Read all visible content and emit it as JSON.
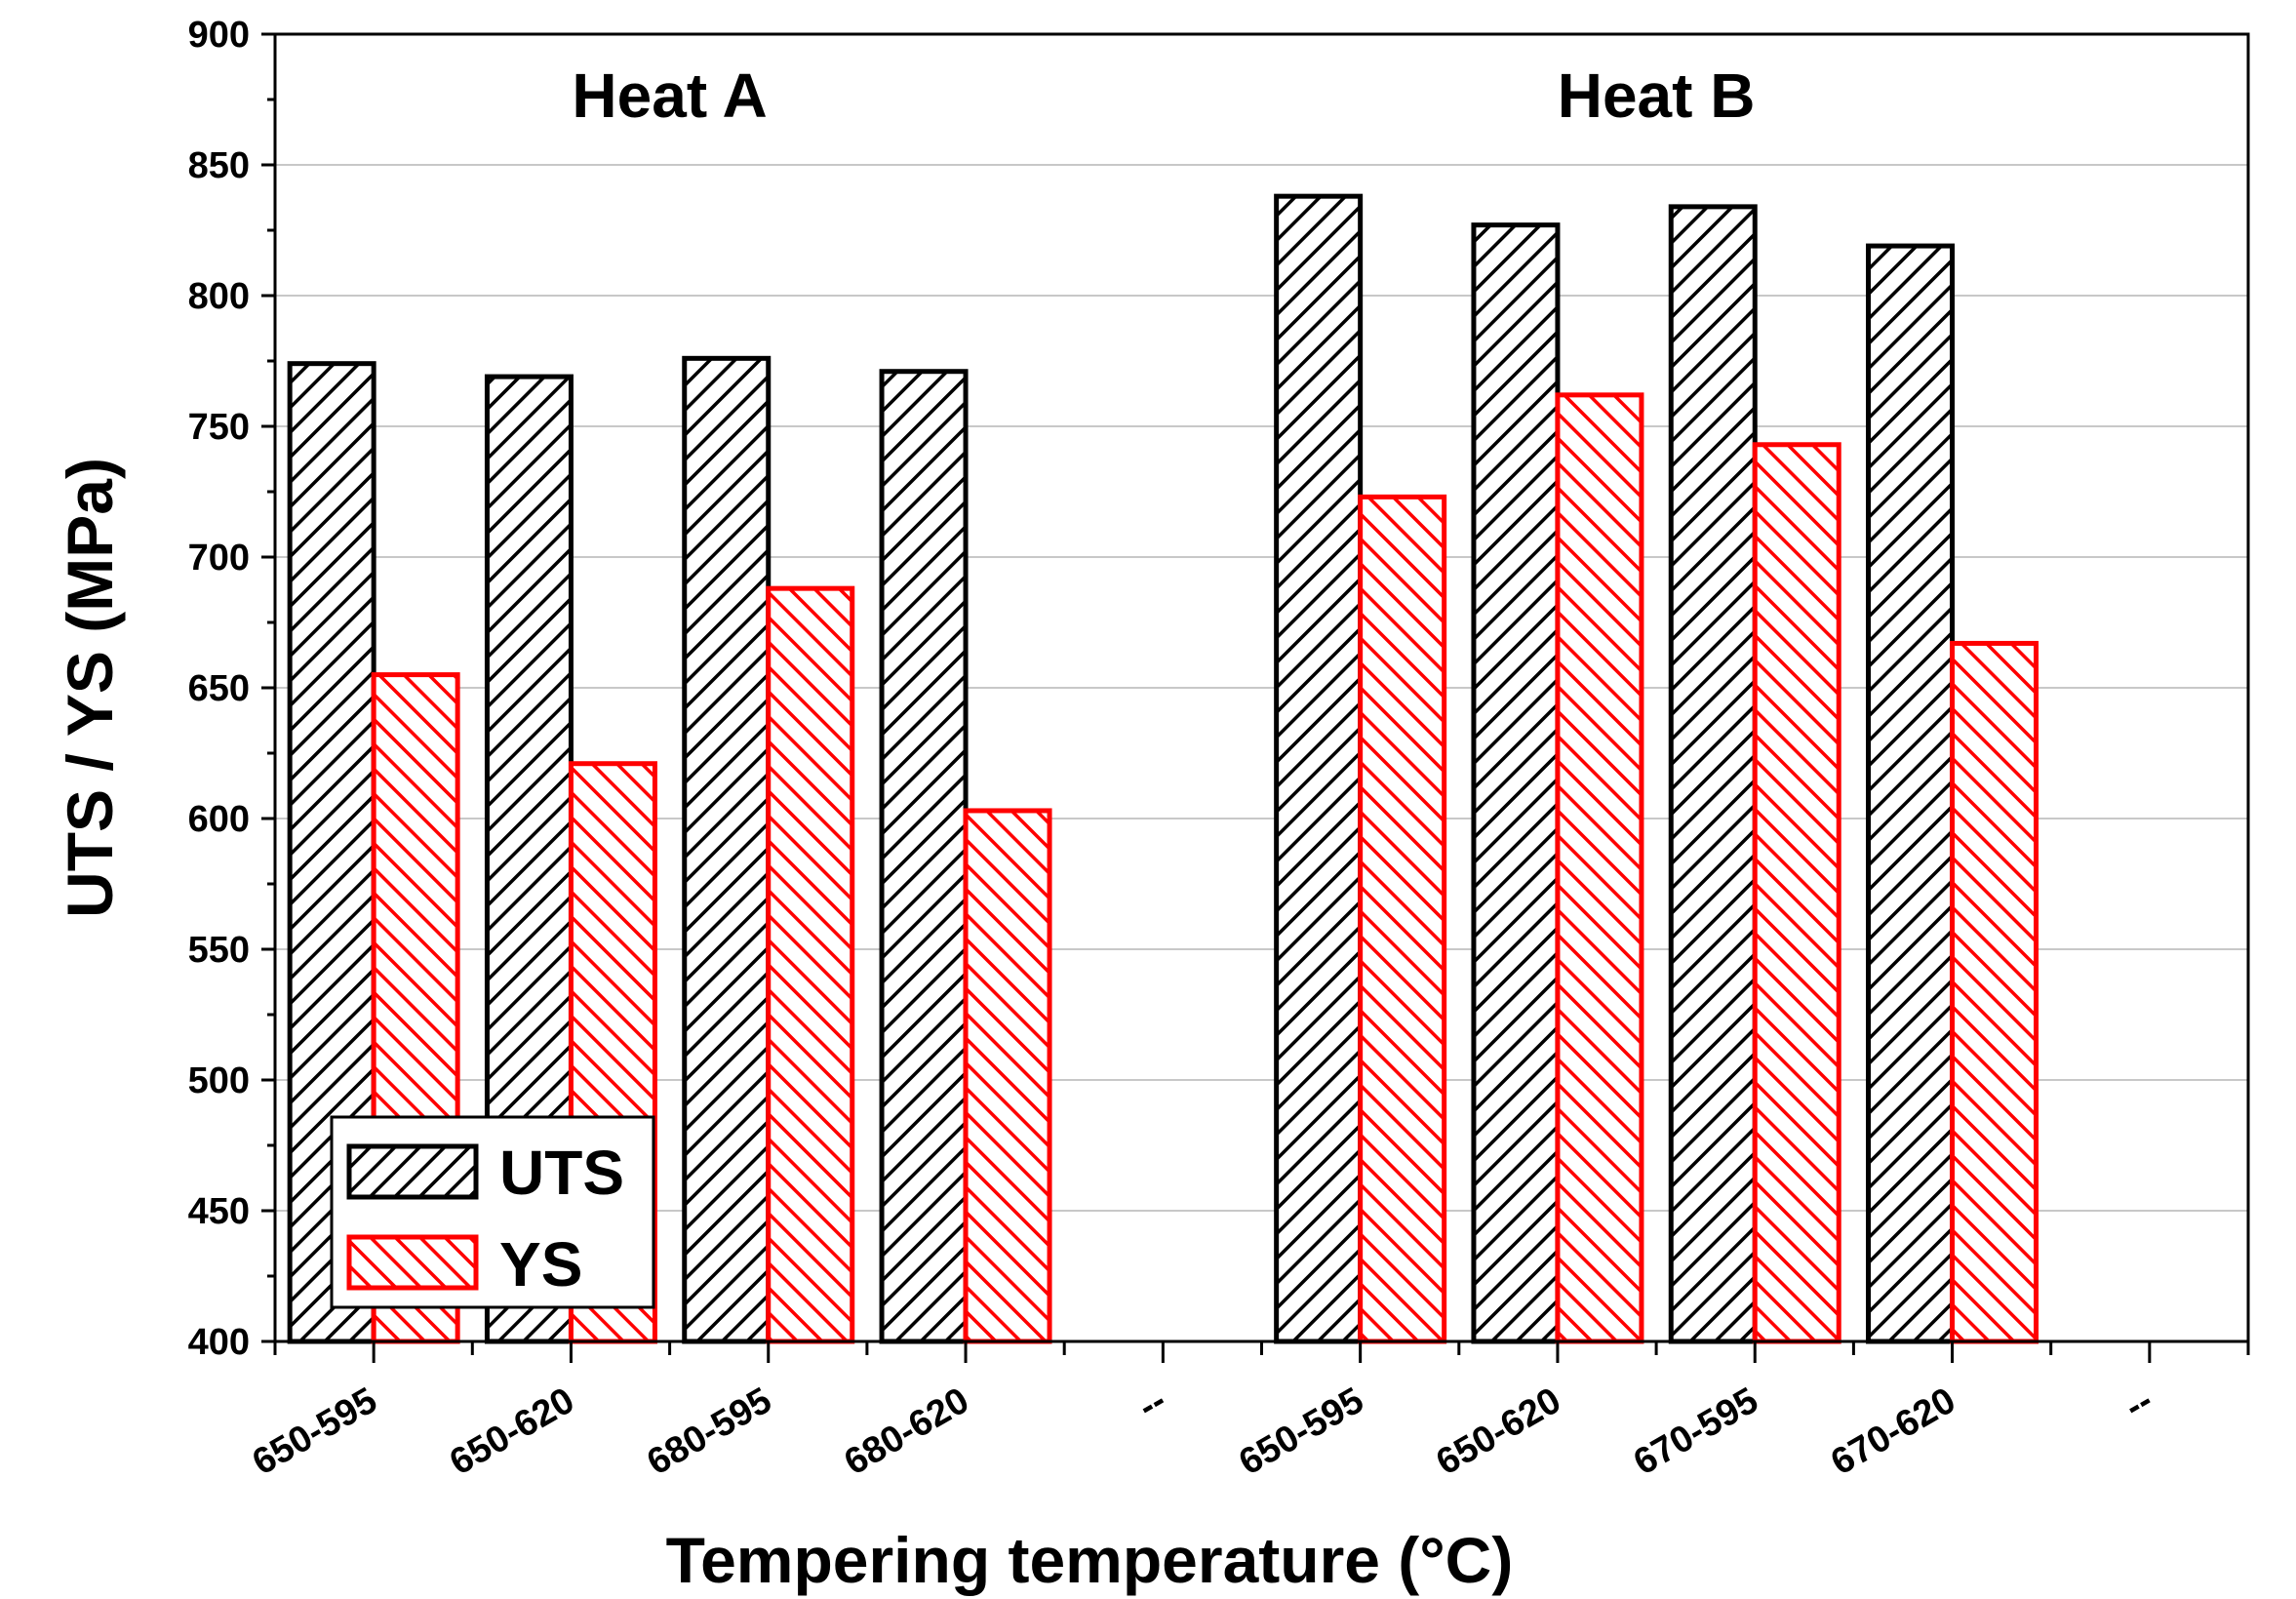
{
  "chart_data": {
    "type": "bar",
    "xlabel": "Tempering temperature (°C)",
    "ylabel": "UTS / YS (MPa)",
    "ylim": [
      400,
      900
    ],
    "yticks": [
      400,
      450,
      500,
      550,
      600,
      650,
      700,
      750,
      800,
      850,
      900
    ],
    "grid": true,
    "categories": [
      "650-595",
      "650-620",
      "680-595",
      "680-620",
      "--",
      "650-595",
      "650-620",
      "670-595",
      "670-620",
      "--"
    ],
    "series": [
      {
        "name": "UTS",
        "color": "#000000",
        "values": [
          774,
          769,
          776,
          771,
          null,
          838,
          827,
          834,
          819,
          null
        ]
      },
      {
        "name": "YS",
        "color": "#ff0000",
        "values": [
          655,
          621,
          688,
          603,
          null,
          723,
          762,
          743,
          667,
          null
        ]
      }
    ],
    "group_labels": [
      "Heat A",
      "Heat B"
    ],
    "legend_position": "bottom-left"
  }
}
